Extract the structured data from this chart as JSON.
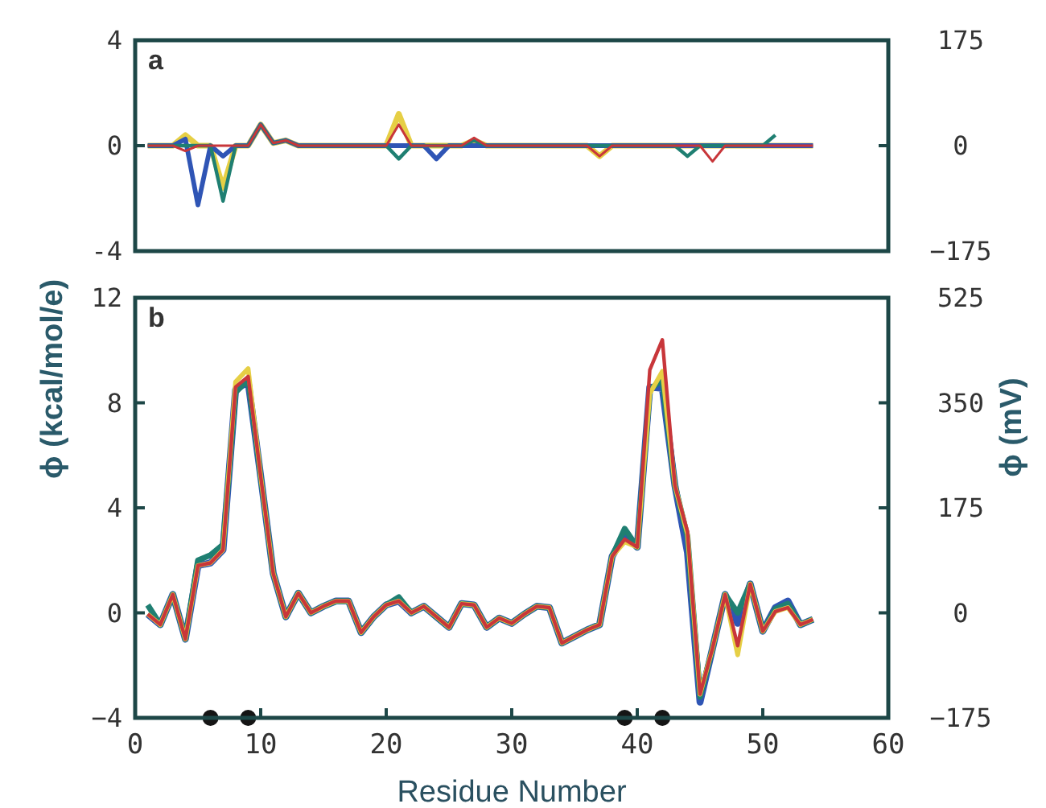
{
  "chart_data": [
    {
      "type": "line",
      "annotations": [
        "a"
      ],
      "xlim": [
        0,
        60
      ],
      "ylim": [
        -4,
        4
      ],
      "yticks": [
        -4,
        0,
        4
      ],
      "y2lim": [
        -175,
        175
      ],
      "y2ticks": [
        {
          "value": 175,
          "label": "175"
        },
        {
          "value": 0,
          "label": "0"
        },
        {
          "value": -175,
          "label": "−175"
        }
      ],
      "tick_labels": "y",
      "grid": false,
      "x": [
        1,
        2,
        3,
        4,
        5,
        6,
        7,
        8,
        9,
        10,
        11,
        12,
        13,
        14,
        15,
        16,
        17,
        18,
        19,
        20,
        21,
        22,
        23,
        24,
        25,
        26,
        27,
        28,
        29,
        30,
        31,
        32,
        33,
        34,
        35,
        36,
        37,
        38,
        39,
        40,
        41,
        42,
        43,
        44,
        45,
        46,
        47,
        48,
        49,
        50,
        51,
        52,
        53,
        54
      ],
      "series": [
        {
          "color": "#e6cf45",
          "values": [
            0,
            0,
            0,
            0.4,
            0,
            0,
            -1.6,
            0,
            0,
            0.8,
            0.1,
            0.2,
            0,
            0,
            0,
            0,
            0,
            0,
            0,
            0,
            1.2,
            0,
            0,
            0,
            0,
            0,
            0.2,
            0,
            0,
            0,
            0,
            0,
            0,
            0,
            0,
            0,
            -0.4,
            0,
            0,
            0,
            0,
            0,
            0,
            0,
            0,
            0,
            0,
            0,
            0,
            0,
            0,
            0,
            0,
            0
          ]
        },
        {
          "color": "#2f55b5",
          "values": [
            0,
            0,
            0,
            0.25,
            -2.25,
            0,
            -0.4,
            0,
            0,
            0.8,
            0.1,
            0.2,
            0,
            0,
            0,
            0,
            0,
            0,
            0,
            0,
            0,
            0,
            0,
            -0.5,
            0,
            0,
            0,
            0,
            0,
            0,
            0,
            0,
            0,
            0,
            0,
            0,
            0,
            0,
            0,
            0,
            0,
            0,
            0,
            0,
            0,
            0,
            0,
            0,
            0,
            0,
            0,
            0,
            0,
            0
          ]
        },
        {
          "color": "#1f7f72",
          "values": [
            0,
            0,
            0,
            0,
            0,
            0,
            -2.1,
            0,
            0,
            0.8,
            0.1,
            0.2,
            0,
            0,
            0,
            0,
            0,
            0,
            0,
            0,
            -0.5,
            0,
            0,
            0,
            0,
            0,
            0.2,
            0,
            0,
            0,
            0,
            0,
            0,
            0,
            0,
            0,
            0,
            0,
            0,
            0,
            0,
            0,
            0,
            -0.4,
            0,
            0,
            0,
            0,
            0,
            0,
            0.4,
            null,
            null,
            null
          ]
        },
        {
          "color": "#c8363a",
          "values": [
            0,
            0,
            0,
            -0.2,
            0,
            0,
            0,
            0,
            0,
            0.8,
            0.1,
            0.2,
            0,
            0,
            0,
            0,
            0,
            0,
            0,
            0,
            0.8,
            0,
            0,
            0,
            0,
            0,
            0.3,
            0,
            0,
            0,
            0,
            0,
            0,
            0,
            0,
            0,
            -0.4,
            0,
            0,
            0,
            0,
            0,
            0,
            0,
            0,
            -0.6,
            0,
            0,
            0,
            0,
            0,
            0,
            0,
            0
          ]
        }
      ]
    },
    {
      "type": "line",
      "annotations": [
        "b"
      ],
      "xlabel": "Residue Number",
      "ylabel": "ϕ (kcal/mol/e)",
      "y2label": "ϕ (mV)",
      "xlim": [
        0,
        60
      ],
      "xticks": [
        0,
        10,
        20,
        30,
        40,
        50,
        60
      ],
      "ylim": [
        -4,
        12
      ],
      "yticks": [
        {
          "value": -4,
          "label": "−4"
        },
        0,
        4,
        8,
        12
      ],
      "y2lim": [
        -175,
        525
      ],
      "y2ticks": [
        {
          "value": 525,
          "label": "525"
        },
        {
          "value": 350,
          "label": "350"
        },
        {
          "value": 175,
          "label": "175"
        },
        {
          "value": 0,
          "label": "0"
        },
        {
          "value": -175,
          "label": "−175"
        }
      ],
      "grid": false,
      "x": [
        1,
        2,
        3,
        4,
        5,
        6,
        7,
        8,
        9,
        10,
        11,
        12,
        13,
        14,
        15,
        16,
        17,
        18,
        19,
        20,
        21,
        22,
        23,
        24,
        25,
        26,
        27,
        28,
        29,
        30,
        31,
        32,
        33,
        34,
        35,
        36,
        37,
        38,
        39,
        40,
        41,
        42,
        43,
        44,
        45,
        46,
        47,
        48,
        49,
        50,
        51,
        52,
        53,
        54
      ],
      "series": [
        {
          "color": "#2f55b5",
          "values": [
            -0.05,
            -0.45,
            0.7,
            -1.0,
            1.8,
            1.9,
            2.4,
            8.5,
            8.8,
            5.2,
            1.5,
            -0.15,
            0.75,
            0,
            0.25,
            0.45,
            0.45,
            -0.75,
            -0.15,
            0.3,
            0.45,
            0,
            0.25,
            -0.15,
            -0.55,
            0.35,
            0.3,
            -0.55,
            -0.2,
            -0.4,
            -0.05,
            0.25,
            0.2,
            -1.15,
            -0.9,
            -0.65,
            -0.45,
            2.15,
            3.0,
            2.5,
            8.6,
            8.55,
            4.85,
            2.3,
            -3.4,
            -1.35,
            0.7,
            -0.4,
            1.1,
            -0.7,
            0.2,
            0.45,
            -0.45,
            -0.25
          ]
        },
        {
          "color": "#1f7f72",
          "values": [
            0.3,
            -0.45,
            0.7,
            -1.0,
            2.0,
            2.2,
            2.6,
            8.4,
            8.9,
            5.2,
            1.5,
            -0.15,
            0.75,
            0,
            0.25,
            0.45,
            0.45,
            -0.75,
            -0.15,
            0.3,
            0.6,
            0,
            0.25,
            -0.15,
            -0.55,
            0.35,
            0.3,
            -0.55,
            -0.2,
            -0.4,
            -0.05,
            0.25,
            0.2,
            -1.15,
            -0.9,
            -0.65,
            -0.45,
            2.15,
            3.2,
            2.5,
            8.5,
            8.9,
            4.85,
            2.9,
            -3.2,
            -1.35,
            0.7,
            0,
            1.1,
            -0.7,
            0.15,
            0.35,
            -0.45,
            -0.25
          ]
        },
        {
          "color": "#e6cf45",
          "values": [
            -0.05,
            -0.45,
            0.7,
            -1.0,
            1.8,
            1.9,
            2.4,
            8.8,
            9.3,
            5.2,
            1.5,
            -0.15,
            0.75,
            0,
            0.25,
            0.45,
            0.45,
            -0.75,
            -0.15,
            0.3,
            0.45,
            0,
            0.25,
            -0.15,
            -0.55,
            0.35,
            0.3,
            -0.55,
            -0.2,
            -0.4,
            -0.05,
            0.25,
            0.2,
            -1.15,
            -0.9,
            -0.65,
            -0.45,
            2.15,
            2.7,
            2.5,
            8.35,
            9.2,
            4.85,
            3.0,
            -3.1,
            -1.35,
            0.7,
            -1.6,
            1.1,
            -0.7,
            0.05,
            0.2,
            -0.45,
            -0.25
          ]
        },
        {
          "color": "#c8363a",
          "values": [
            -0.05,
            -0.45,
            0.7,
            -1.0,
            1.8,
            1.9,
            2.4,
            8.6,
            9.0,
            5.2,
            1.5,
            -0.15,
            0.75,
            0,
            0.25,
            0.45,
            0.45,
            -0.75,
            -0.15,
            0.3,
            0.45,
            0,
            0.25,
            -0.15,
            -0.55,
            0.35,
            0.3,
            -0.55,
            -0.2,
            -0.4,
            -0.05,
            0.25,
            0.2,
            -1.15,
            -0.9,
            -0.65,
            -0.45,
            2.15,
            2.8,
            2.5,
            9.25,
            10.4,
            4.85,
            3.1,
            -3.1,
            -1.35,
            0.7,
            -1.25,
            1.1,
            -0.7,
            0.05,
            0.2,
            -0.45,
            -0.25
          ]
        },
        {
          "type": "scatter",
          "marker": "circle",
          "color": "#151515",
          "x": [
            6,
            9,
            39,
            42
          ],
          "values": [
            -4,
            -4,
            -4,
            -4
          ]
        }
      ]
    }
  ]
}
